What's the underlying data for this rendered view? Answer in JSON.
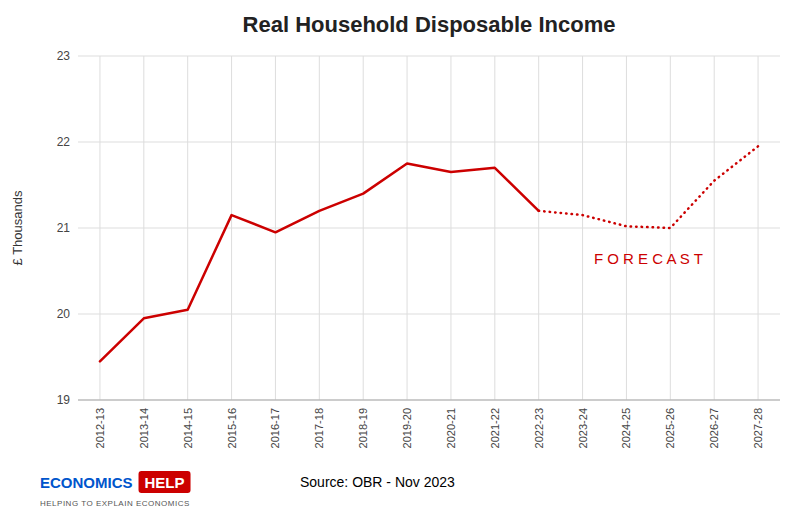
{
  "chart_data": {
    "type": "line",
    "title": "Real Household Disposable Income",
    "y_label": "£ Thousands",
    "categories": [
      "2012-13",
      "2013-14",
      "2014-15",
      "2015-16",
      "2016-17",
      "2017-18",
      "2018-19",
      "2019-20",
      "2020-21",
      "2021-22",
      "2022-23",
      "2023-24",
      "2024-25",
      "2025-26",
      "2026-27",
      "2027-28"
    ],
    "series": [
      {
        "color": "#cc0000",
        "line_style": "solid",
        "values": [
          19.45,
          19.95,
          20.05,
          21.15,
          20.95,
          21.2,
          21.4,
          21.75,
          21.65,
          21.7,
          21.2,
          null,
          null,
          null,
          null,
          null
        ]
      },
      {
        "color": "#cc0000",
        "line_style": "dotted",
        "values": [
          null,
          null,
          null,
          null,
          null,
          null,
          null,
          null,
          null,
          null,
          21.2,
          21.15,
          21.02,
          21.0,
          21.55,
          21.95
        ]
      }
    ],
    "ylim": [
      19.0,
      23.0
    ],
    "yticks": [
      19,
      20,
      21,
      22,
      23
    ],
    "grid": true,
    "annotations": [
      {
        "text": "F O R E C A S T",
        "x": 12.5,
        "y": 20.65,
        "color": "#cc0000"
      }
    ],
    "source": "Source: OBR - Nov 2023",
    "logo": "ECONOMICS",
    "logo_badge": "HELP",
    "tagline": "HELPING TO EXPLAIN ECONOMICS"
  }
}
